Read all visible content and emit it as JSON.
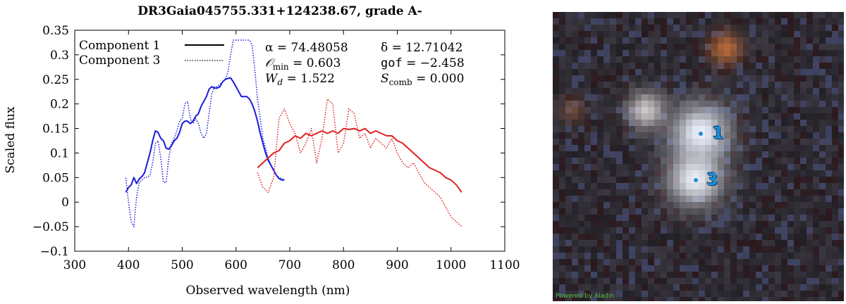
{
  "chart_data": {
    "type": "line",
    "title": "DR3Gaia045755.331+124238.67, grade A-",
    "xlabel": "Observed wavelength (nm)",
    "ylabel": "Scaled flux",
    "xlim": [
      300,
      1100
    ],
    "ylim": [
      -0.1,
      0.35
    ],
    "xticks": [
      "300",
      "400",
      "500",
      "600",
      "700",
      "800",
      "900",
      "1000",
      "1100"
    ],
    "yticks": [
      "−0.1",
      "−0.05",
      "0",
      "0.05",
      "0.1",
      "0.15",
      "0.2",
      "0.25",
      "0.3",
      "0.35"
    ],
    "legend": {
      "position": "top-left",
      "entries": [
        {
          "label": "Component 1",
          "style": "solid"
        },
        {
          "label": "Component 3",
          "style": "dotted"
        }
      ]
    },
    "annotations": {
      "alpha": "α = 74.48058",
      "delta": "δ = 12.71042",
      "omin": "𝒪 min = 0.603",
      "gof": "gof = −2.458",
      "wd": "W d = 1.522",
      "scomb": "S comb = 0.000"
    },
    "annotation_parts": {
      "alpha": "α = 74.48058",
      "delta": "δ = 12.71042",
      "omin_sym": "𝒪",
      "omin_sub": "min",
      "omin_val": " = 0.603",
      "gof_key": "gof",
      "gof_val": " = −2.458",
      "wd_sym": "W",
      "wd_sub": "d",
      "wd_val": " = 1.522",
      "scomb_sym": "S",
      "scomb_sub": "comb",
      "scomb_val": " = 0.000"
    },
    "series": [
      {
        "name": "Component 1 (BP)",
        "color": "#1a1adb",
        "style": "solid",
        "x": [
          395,
          400,
          405,
          410,
          415,
          420,
          425,
          430,
          435,
          440,
          445,
          450,
          455,
          460,
          465,
          470,
          475,
          480,
          485,
          490,
          495,
          500,
          505,
          510,
          515,
          520,
          525,
          530,
          535,
          540,
          545,
          550,
          555,
          560,
          565,
          570,
          575,
          580,
          585,
          590,
          595,
          600,
          605,
          610,
          615,
          620,
          625,
          630,
          635,
          640,
          645,
          650,
          655,
          660,
          665,
          670,
          675,
          680,
          685,
          690
        ],
        "y": [
          0.02,
          0.03,
          0.035,
          0.05,
          0.038,
          0.047,
          0.052,
          0.06,
          0.08,
          0.1,
          0.125,
          0.145,
          0.142,
          0.13,
          0.125,
          0.11,
          0.108,
          0.115,
          0.125,
          0.13,
          0.142,
          0.16,
          0.165,
          0.165,
          0.16,
          0.165,
          0.175,
          0.18,
          0.195,
          0.205,
          0.215,
          0.23,
          0.235,
          0.232,
          0.232,
          0.235,
          0.245,
          0.25,
          0.252,
          0.253,
          0.245,
          0.235,
          0.225,
          0.215,
          0.215,
          0.215,
          0.21,
          0.2,
          0.185,
          0.165,
          0.14,
          0.12,
          0.1,
          0.085,
          0.075,
          0.065,
          0.055,
          0.048,
          0.045,
          0.045
        ]
      },
      {
        "name": "Component 3 (BP)",
        "color": "#1a1adb",
        "style": "dotted",
        "x": [
          395,
          400,
          405,
          410,
          415,
          420,
          425,
          430,
          435,
          440,
          445,
          450,
          455,
          460,
          465,
          470,
          475,
          480,
          485,
          490,
          495,
          500,
          505,
          510,
          515,
          520,
          525,
          530,
          535,
          540,
          545,
          550,
          555,
          560,
          565,
          570,
          575,
          580,
          585,
          590,
          595,
          600,
          605,
          610,
          615,
          620,
          625,
          630,
          635,
          640,
          645,
          650,
          655,
          660,
          665,
          670,
          675,
          680,
          685,
          690
        ],
        "y": [
          0.05,
          0.0,
          -0.04,
          -0.05,
          0.01,
          0.04,
          0.045,
          0.05,
          0.05,
          0.055,
          0.08,
          0.12,
          0.125,
          0.09,
          0.04,
          0.04,
          0.09,
          0.12,
          0.13,
          0.145,
          0.165,
          0.17,
          0.2,
          0.205,
          0.17,
          0.16,
          0.17,
          0.16,
          0.14,
          0.13,
          0.14,
          0.18,
          0.22,
          0.235,
          0.235,
          0.24,
          0.245,
          0.25,
          0.265,
          0.3,
          0.33,
          0.33,
          0.33,
          0.33,
          0.33,
          0.33,
          0.33,
          0.32,
          0.27,
          0.21,
          0.17,
          0.13,
          0.11,
          0.09,
          0.075,
          0.065,
          0.055,
          0.05,
          0.048,
          0.045
        ]
      },
      {
        "name": "Component 1 (RP)",
        "color": "#e02020",
        "style": "solid",
        "x": [
          640,
          650,
          660,
          670,
          680,
          690,
          700,
          710,
          720,
          730,
          740,
          750,
          760,
          770,
          780,
          790,
          800,
          810,
          820,
          830,
          840,
          850,
          860,
          870,
          880,
          890,
          900,
          910,
          920,
          930,
          940,
          950,
          960,
          970,
          980,
          990,
          1000,
          1010,
          1020
        ],
        "y": [
          0.07,
          0.08,
          0.09,
          0.1,
          0.105,
          0.12,
          0.125,
          0.135,
          0.13,
          0.14,
          0.135,
          0.14,
          0.145,
          0.14,
          0.145,
          0.14,
          0.15,
          0.148,
          0.15,
          0.145,
          0.15,
          0.14,
          0.145,
          0.14,
          0.135,
          0.135,
          0.125,
          0.12,
          0.11,
          0.1,
          0.09,
          0.08,
          0.07,
          0.065,
          0.06,
          0.05,
          0.045,
          0.035,
          0.02
        ]
      },
      {
        "name": "Component 3 (RP)",
        "color": "#e02020",
        "style": "dotted",
        "x": [
          640,
          650,
          660,
          670,
          680,
          690,
          700,
          710,
          720,
          730,
          740,
          750,
          760,
          770,
          780,
          790,
          800,
          810,
          820,
          830,
          840,
          850,
          860,
          870,
          880,
          890,
          900,
          910,
          920,
          930,
          940,
          950,
          960,
          970,
          980,
          990,
          1000,
          1010,
          1020
        ],
        "y": [
          0.06,
          0.03,
          0.02,
          0.05,
          0.17,
          0.19,
          0.16,
          0.14,
          0.1,
          0.12,
          0.15,
          0.08,
          0.13,
          0.21,
          0.2,
          0.1,
          0.12,
          0.19,
          0.18,
          0.13,
          0.14,
          0.11,
          0.13,
          0.12,
          0.11,
          0.13,
          0.1,
          0.08,
          0.07,
          0.08,
          0.06,
          0.04,
          0.03,
          0.02,
          0.01,
          -0.01,
          -0.03,
          -0.04,
          -0.05
        ]
      }
    ]
  },
  "cutout": {
    "sources": [
      {
        "label": "1"
      },
      {
        "label": "3"
      }
    ],
    "credit": "Powered by Aladin"
  }
}
